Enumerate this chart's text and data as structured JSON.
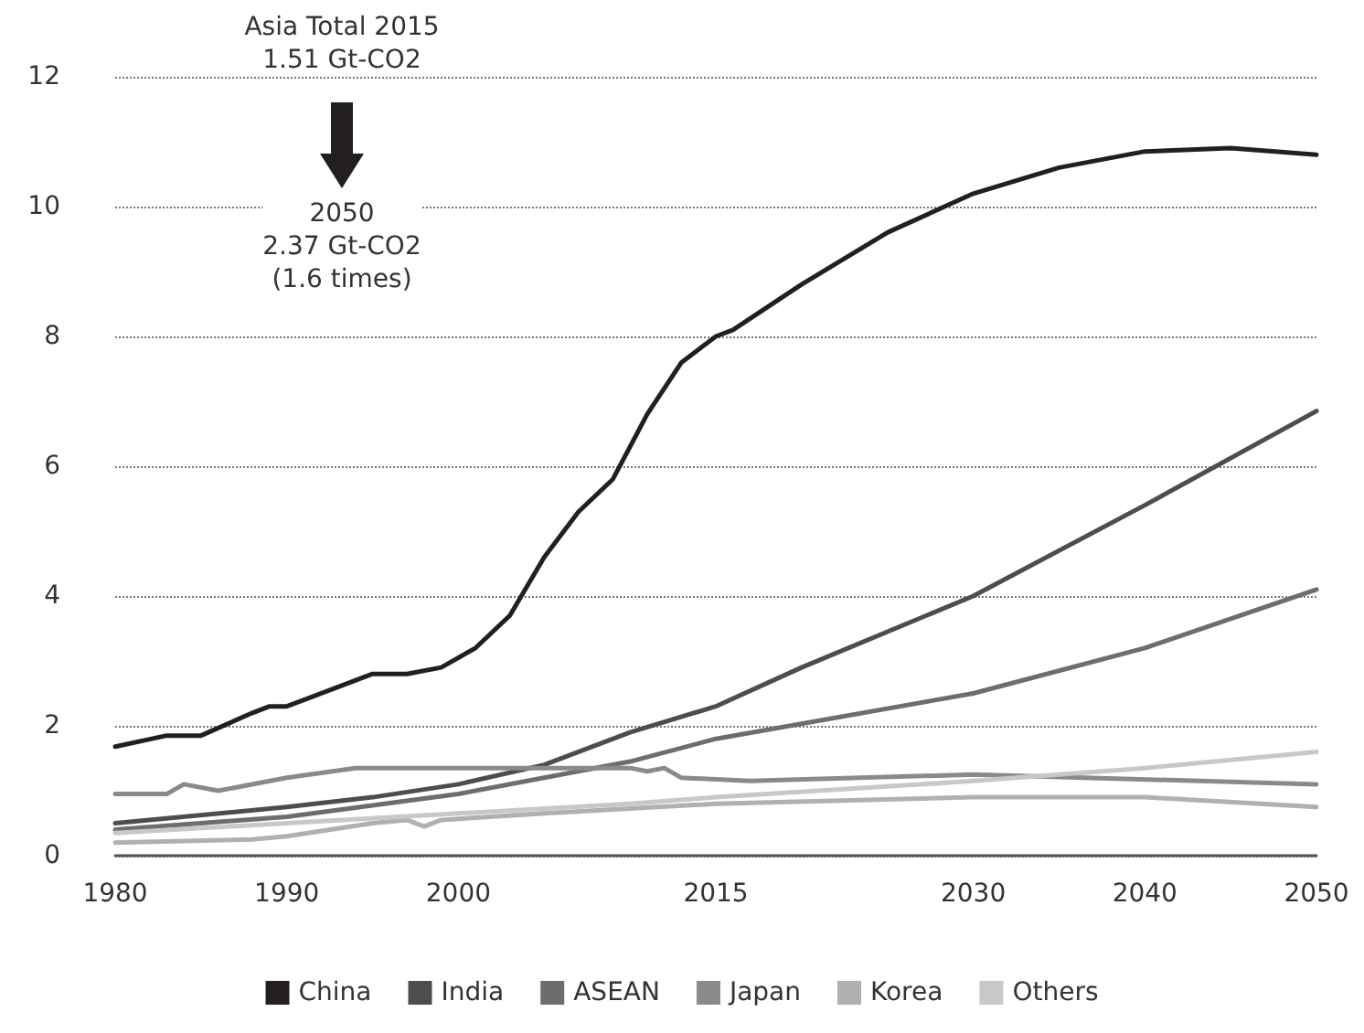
{
  "chart_data": {
    "type": "line",
    "annotations": [
      "Asia Total 2015\n1.51 Gt-CO2",
      "2050\n2.37 Gt-CO2\n(1.6 times)"
    ],
    "xlim": [
      1980,
      2050
    ],
    "xticks": [
      1980,
      1990,
      2000,
      2015,
      2030,
      2040,
      2050
    ],
    "ylim": [
      0,
      12
    ],
    "yticks": [
      0,
      2,
      4,
      6,
      8,
      10,
      12
    ],
    "grid": "y",
    "legend": "bottom",
    "marker": "none",
    "line_style": "solid",
    "series": [
      {
        "name": "China",
        "color": "#231f20",
        "x": [
          1980,
          1983,
          1985,
          1988,
          1989,
          1990,
          1993,
          1995,
          1997,
          1999,
          2001,
          2003,
          2005,
          2007,
          2009,
          2011,
          2013,
          2015,
          2016,
          2020,
          2025,
          2030,
          2035,
          2040,
          2045,
          2050
        ],
        "values": [
          1.68,
          1.85,
          1.85,
          2.2,
          2.3,
          2.3,
          2.6,
          2.8,
          2.8,
          2.9,
          3.2,
          3.7,
          4.6,
          5.3,
          5.8,
          6.8,
          7.6,
          8.0,
          8.1,
          8.8,
          9.6,
          10.2,
          10.6,
          10.85,
          10.9,
          10.8
        ]
      },
      {
        "name": "India",
        "color": "#4d4d4d",
        "x": [
          1980,
          1990,
          1995,
          2000,
          2005,
          2010,
          2015,
          2020,
          2030,
          2040,
          2050
        ],
        "values": [
          0.5,
          0.75,
          0.9,
          1.1,
          1.4,
          1.9,
          2.3,
          2.9,
          4.0,
          5.4,
          6.85
        ]
      },
      {
        "name": "ASEAN",
        "color": "#6d6d6d",
        "x": [
          1980,
          1990,
          2000,
          2005,
          2010,
          2015,
          2030,
          2040,
          2050
        ],
        "values": [
          0.4,
          0.6,
          0.95,
          1.2,
          1.45,
          1.8,
          2.5,
          3.2,
          4.1
        ]
      },
      {
        "name": "Japan",
        "color": "#8a8a8a",
        "x": [
          1980,
          1983,
          1984,
          1986,
          1990,
          1994,
          2000,
          2005,
          2010,
          2011,
          2012,
          2013,
          2017,
          2030,
          2050
        ],
        "values": [
          0.95,
          0.95,
          1.1,
          1.0,
          1.2,
          1.35,
          1.35,
          1.35,
          1.35,
          1.3,
          1.35,
          1.2,
          1.15,
          1.25,
          1.1
        ]
      },
      {
        "name": "Korea",
        "color": "#b0b0b0",
        "x": [
          1980,
          1988,
          1990,
          1995,
          1997,
          1998,
          1999,
          2005,
          2015,
          2030,
          2040,
          2050
        ],
        "values": [
          0.2,
          0.25,
          0.3,
          0.5,
          0.55,
          0.45,
          0.55,
          0.65,
          0.8,
          0.9,
          0.9,
          0.75
        ]
      },
      {
        "name": "Others",
        "color": "#c8c8c8",
        "x": [
          1980,
          1990,
          2000,
          2010,
          2015,
          2030,
          2040,
          2050
        ],
        "values": [
          0.35,
          0.5,
          0.65,
          0.8,
          0.9,
          1.15,
          1.35,
          1.6
        ]
      }
    ]
  }
}
